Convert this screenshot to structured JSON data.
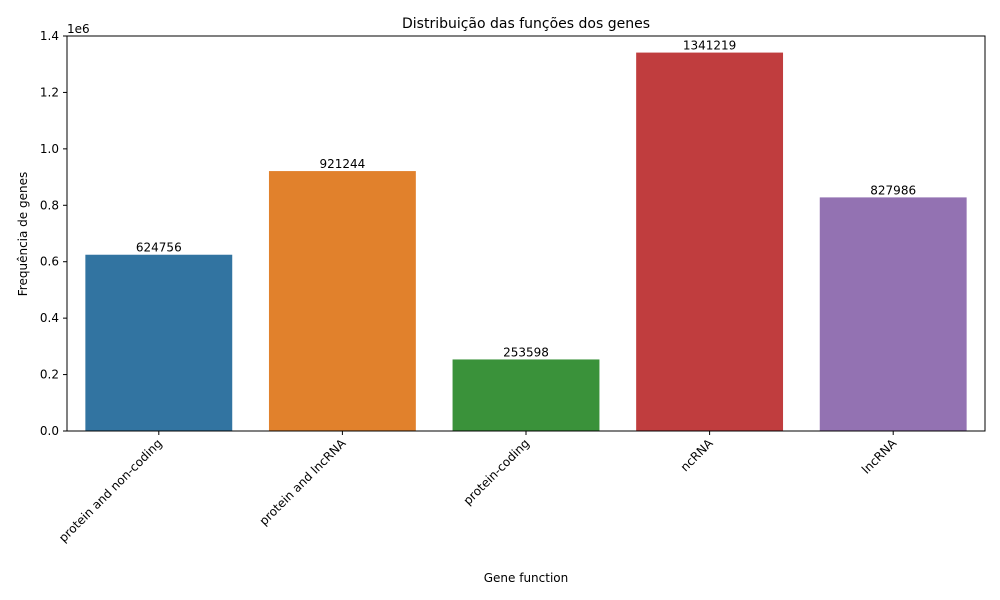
{
  "chart_data": {
    "type": "bar",
    "title": "Distribuição das funções dos genes",
    "xlabel": "Gene function",
    "ylabel": "Frequência de genes",
    "y_offset_label": "1e6",
    "categories": [
      "protein and non-coding",
      "protein and lncRNA",
      "protein-coding",
      "ncRNA",
      "lncRNA"
    ],
    "values": [
      624756,
      921244,
      253598,
      1341219,
      827986
    ],
    "value_labels": [
      "624756",
      "921244",
      "253598",
      "1341219",
      "827986"
    ],
    "colors": [
      "#3274a1",
      "#e1812c",
      "#3a923a",
      "#c03d3e",
      "#9372b2"
    ],
    "ylim": [
      0,
      1400000
    ],
    "yticks": [
      0,
      200000,
      400000,
      600000,
      800000,
      1000000,
      1200000,
      1400000
    ],
    "ytick_labels": [
      "0.0",
      "0.2",
      "0.4",
      "0.6",
      "0.8",
      "1.0",
      "1.2",
      "1.4"
    ],
    "grid": false,
    "xtick_rotation_deg": 45
  }
}
